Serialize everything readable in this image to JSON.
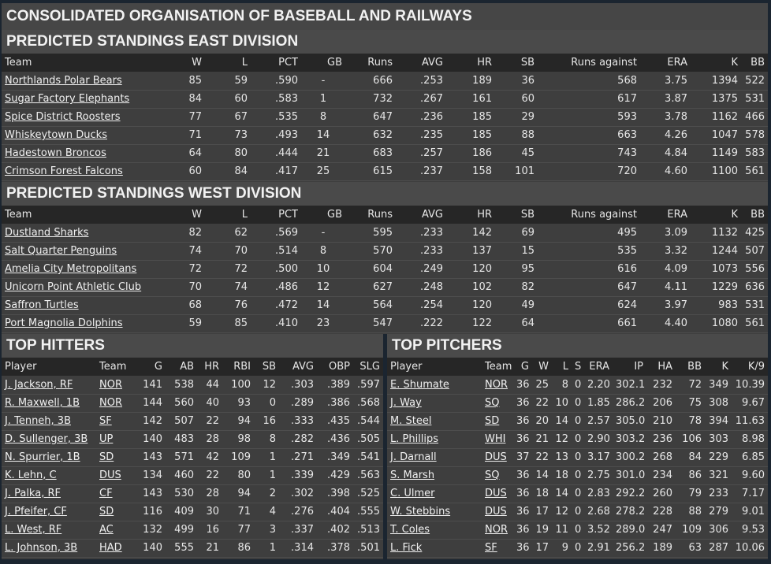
{
  "title": "CONSOLIDATED ORGANISATION OF BASEBALL AND RAILWAYS",
  "east": {
    "title": "PREDICTED STANDINGS EAST DIVISION",
    "headers": [
      "Team",
      "W",
      "L",
      "PCT",
      "GB",
      "Runs",
      "AVG",
      "HR",
      "SB",
      "Runs against",
      "ERA",
      "K",
      "BB"
    ],
    "rows": [
      [
        "Northlands Polar Bears",
        "85",
        "59",
        ".590",
        "-",
        "666",
        ".253",
        "189",
        "36",
        "568",
        "3.75",
        "1394",
        "522"
      ],
      [
        "Sugar Factory Elephants",
        "84",
        "60",
        ".583",
        "1",
        "732",
        ".267",
        "161",
        "60",
        "617",
        "3.87",
        "1375",
        "531"
      ],
      [
        "Spice District Roosters",
        "77",
        "67",
        ".535",
        "8",
        "647",
        ".236",
        "185",
        "29",
        "593",
        "3.78",
        "1162",
        "466"
      ],
      [
        "Whiskeytown Ducks",
        "71",
        "73",
        ".493",
        "14",
        "632",
        ".235",
        "185",
        "88",
        "663",
        "4.26",
        "1047",
        "578"
      ],
      [
        "Hadestown Broncos",
        "64",
        "80",
        ".444",
        "21",
        "683",
        ".257",
        "186",
        "45",
        "743",
        "4.84",
        "1149",
        "583"
      ],
      [
        "Crimson Forest Falcons",
        "60",
        "84",
        ".417",
        "25",
        "615",
        ".237",
        "158",
        "101",
        "720",
        "4.60",
        "1100",
        "561"
      ]
    ]
  },
  "west": {
    "title": "PREDICTED STANDINGS WEST DIVISION",
    "headers": [
      "Team",
      "W",
      "L",
      "PCT",
      "GB",
      "Runs",
      "AVG",
      "HR",
      "SB",
      "Runs against",
      "ERA",
      "K",
      "BB"
    ],
    "rows": [
      [
        "Dustland Sharks",
        "82",
        "62",
        ".569",
        "-",
        "595",
        ".233",
        "142",
        "69",
        "495",
        "3.09",
        "1132",
        "425"
      ],
      [
        "Salt Quarter Penguins",
        "74",
        "70",
        ".514",
        "8",
        "570",
        ".233",
        "137",
        "15",
        "535",
        "3.32",
        "1244",
        "507"
      ],
      [
        "Amelia City Metropolitans",
        "72",
        "72",
        ".500",
        "10",
        "604",
        ".249",
        "120",
        "95",
        "616",
        "4.09",
        "1073",
        "556"
      ],
      [
        "Unicorn Point Athletic Club",
        "70",
        "74",
        ".486",
        "12",
        "627",
        ".248",
        "102",
        "82",
        "647",
        "4.11",
        "1229",
        "636"
      ],
      [
        "Saffron Turtles",
        "68",
        "76",
        ".472",
        "14",
        "564",
        ".254",
        "120",
        "49",
        "624",
        "3.97",
        "983",
        "531"
      ],
      [
        "Port Magnolia Dolphins",
        "59",
        "85",
        ".410",
        "23",
        "547",
        ".222",
        "122",
        "64",
        "661",
        "4.40",
        "1080",
        "561"
      ]
    ]
  },
  "hitters": {
    "title": "TOP HITTERS",
    "headers": [
      "Player",
      "Team",
      "G",
      "AB",
      "HR",
      "RBI",
      "SB",
      "AVG",
      "OBP",
      "SLG"
    ],
    "rows": [
      [
        "J. Jackson, RF",
        "NOR",
        "141",
        "538",
        "44",
        "100",
        "12",
        ".303",
        ".389",
        ".597"
      ],
      [
        "R. Maxwell, 1B",
        "NOR",
        "144",
        "560",
        "40",
        "93",
        "0",
        ".289",
        ".386",
        ".568"
      ],
      [
        "J. Tenneh, 3B",
        "SF",
        "142",
        "507",
        "22",
        "94",
        "16",
        ".333",
        ".435",
        ".544"
      ],
      [
        "D. Sullenger, 3B",
        "UP",
        "140",
        "483",
        "28",
        "98",
        "8",
        ".282",
        ".436",
        ".505"
      ],
      [
        "N. Spurrier, 1B",
        "SD",
        "143",
        "571",
        "42",
        "109",
        "1",
        ".271",
        ".349",
        ".541"
      ],
      [
        "K. Lehn, C",
        "DUS",
        "134",
        "460",
        "22",
        "80",
        "1",
        ".339",
        ".429",
        ".563"
      ],
      [
        "J. Palka, RF",
        "CF",
        "143",
        "530",
        "28",
        "94",
        "2",
        ".302",
        ".398",
        ".525"
      ],
      [
        "J. Pfeifer, CF",
        "SD",
        "116",
        "409",
        "30",
        "71",
        "4",
        ".276",
        ".404",
        ".555"
      ],
      [
        "L. West, RF",
        "AC",
        "132",
        "499",
        "16",
        "77",
        "3",
        ".337",
        ".402",
        ".513"
      ],
      [
        "L. Johnson, 3B",
        "HAD",
        "140",
        "555",
        "21",
        "86",
        "1",
        ".314",
        ".378",
        ".501"
      ]
    ]
  },
  "pitchers": {
    "title": "TOP PITCHERS",
    "headers": [
      "Player",
      "Team",
      "G",
      "W",
      "L",
      "S",
      "ERA",
      "IP",
      "HA",
      "BB",
      "K",
      "K/9"
    ],
    "rows": [
      [
        "E. Shumate",
        "NOR",
        "36",
        "25",
        "8",
        "0",
        "2.20",
        "302.1",
        "232",
        "72",
        "349",
        "10.39"
      ],
      [
        "J. Way",
        "SQ",
        "36",
        "22",
        "10",
        "0",
        "1.85",
        "286.2",
        "206",
        "75",
        "308",
        "9.67"
      ],
      [
        "M. Steel",
        "SD",
        "36",
        "20",
        "14",
        "0",
        "2.57",
        "305.0",
        "210",
        "78",
        "394",
        "11.63"
      ],
      [
        "L. Phillips",
        "WHI",
        "36",
        "21",
        "12",
        "0",
        "2.90",
        "303.2",
        "236",
        "106",
        "303",
        "8.98"
      ],
      [
        "J. Darnall",
        "DUS",
        "37",
        "22",
        "13",
        "0",
        "3.17",
        "300.2",
        "268",
        "84",
        "229",
        "6.85"
      ],
      [
        "S. Marsh",
        "SQ",
        "36",
        "14",
        "18",
        "0",
        "2.75",
        "301.0",
        "234",
        "86",
        "321",
        "9.60"
      ],
      [
        "C. Ulmer",
        "DUS",
        "36",
        "18",
        "14",
        "0",
        "2.83",
        "292.2",
        "260",
        "79",
        "233",
        "7.17"
      ],
      [
        "W. Stebbins",
        "DUS",
        "36",
        "17",
        "12",
        "0",
        "2.68",
        "278.2",
        "228",
        "88",
        "279",
        "9.01"
      ],
      [
        "T. Coles",
        "NOR",
        "36",
        "19",
        "11",
        "0",
        "3.52",
        "289.0",
        "247",
        "109",
        "306",
        "9.53"
      ],
      [
        "L. Fick",
        "SF",
        "36",
        "17",
        "9",
        "0",
        "2.91",
        "256.2",
        "189",
        "63",
        "287",
        "10.06"
      ]
    ]
  }
}
